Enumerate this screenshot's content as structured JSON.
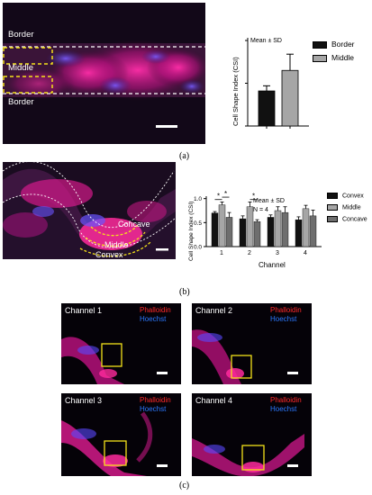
{
  "panel_a": {
    "label": "(a)",
    "regions": [
      "Border",
      "Middle",
      "Border"
    ],
    "chart_data": {
      "type": "bar",
      "categories": [
        "Border",
        "Middle"
      ],
      "values": [
        0.41,
        0.65
      ],
      "errors": [
        0.06,
        0.19
      ],
      "ylabel": "Cell Shape Index (CSI)",
      "annotation": "Mean ± SD",
      "ylim": [
        0,
        1
      ],
      "legend": [
        "Border",
        "Middle"
      ],
      "colors": [
        "#111111",
        "#a6a6a6"
      ]
    }
  },
  "panel_b": {
    "label": "(b)",
    "regions": [
      "Concave",
      "Middle",
      "Convex"
    ],
    "chart_data": {
      "type": "bar",
      "categories": [
        "1",
        "2",
        "3",
        "4"
      ],
      "xlabel": "Channel",
      "ylabel": "Cell Shape Index (CSI)",
      "annotations": [
        "Mean ± SD",
        "N = 4"
      ],
      "yticks": [
        "0.0",
        "0.5",
        "1.0"
      ],
      "ylim": [
        0,
        1.05
      ],
      "series": [
        {
          "name": "Convex",
          "values": [
            0.7,
            0.58,
            0.61,
            0.56
          ],
          "errors": [
            0.03,
            0.06,
            0.05,
            0.06
          ],
          "color": "#111111"
        },
        {
          "name": "Middle",
          "values": [
            0.87,
            0.83,
            0.75,
            0.79
          ],
          "errors": [
            0.06,
            0.1,
            0.08,
            0.07
          ],
          "color": "#a6a6a6"
        },
        {
          "name": "Concave",
          "values": [
            0.61,
            0.52,
            0.71,
            0.64
          ],
          "errors": [
            0.1,
            0.04,
            0.12,
            0.12
          ],
          "color": "#6e6e6e"
        }
      ],
      "significance": [
        "*",
        "*",
        "*"
      ]
    }
  },
  "panel_c": {
    "label": "(c)",
    "tiles": [
      {
        "title": "Channel 1",
        "stain1": "Phalloidin",
        "stain2": "Hoechst"
      },
      {
        "title": "Channel 2",
        "stain1": "Phalloidin",
        "stain2": "Hoechst"
      },
      {
        "title": "Channel 3",
        "stain1": "Phalloidin",
        "stain2": "Hoechst"
      },
      {
        "title": "Channel 4",
        "stain1": "Phalloidin",
        "stain2": "Hoechst"
      }
    ]
  }
}
